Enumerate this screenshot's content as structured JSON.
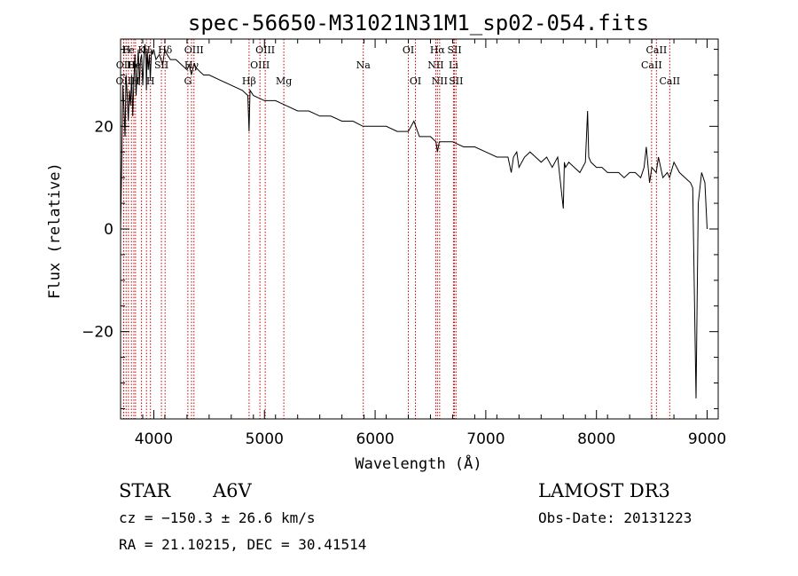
{
  "chart_data": {
    "type": "line",
    "title": "spec-56650-M31021N31M1_sp02-054.fits",
    "xlabel": "Wavelength (Å)",
    "ylabel": "Flux (relative)",
    "xlim": [
      3700,
      9100
    ],
    "ylim": [
      -37,
      37
    ],
    "x_ticks": [
      4000,
      5000,
      6000,
      7000,
      8000,
      9000
    ],
    "y_ticks": [
      -20,
      0,
      20
    ],
    "series": [
      {
        "name": "flux",
        "x": [
          3700,
          3710,
          3720,
          3730,
          3740,
          3750,
          3760,
          3770,
          3780,
          3790,
          3800,
          3810,
          3820,
          3830,
          3840,
          3850,
          3860,
          3870,
          3880,
          3890,
          3900,
          3910,
          3920,
          3930,
          3933,
          3940,
          3950,
          3960,
          3968,
          3980,
          3990,
          4000,
          4020,
          4050,
          4080,
          4100,
          4120,
          4150,
          4200,
          4250,
          4300,
          4320,
          4340,
          4360,
          4400,
          4450,
          4500,
          4600,
          4700,
          4800,
          4850,
          4861,
          4870,
          4900,
          5000,
          5100,
          5200,
          5300,
          5400,
          5500,
          5600,
          5700,
          5800,
          5890,
          5900,
          6000,
          6100,
          6200,
          6300,
          6350,
          6400,
          6500,
          6550,
          6563,
          6580,
          6600,
          6700,
          6800,
          6900,
          7000,
          7100,
          7200,
          7230,
          7250,
          7280,
          7300,
          7350,
          7400,
          7450,
          7500,
          7550,
          7600,
          7650,
          7700,
          7710,
          7720,
          7750,
          7800,
          7850,
          7900,
          7920,
          7930,
          7950,
          8000,
          8050,
          8100,
          8150,
          8200,
          8250,
          8300,
          8350,
          8400,
          8430,
          8450,
          8480,
          8500,
          8540,
          8560,
          8600,
          8640,
          8660,
          8700,
          8750,
          8800,
          8850,
          8870,
          8890,
          8900,
          8920,
          8950,
          8980,
          9000
        ],
        "y": [
          0,
          12,
          28,
          24,
          18,
          30,
          26,
          21,
          27,
          24,
          30,
          22,
          29,
          34,
          26,
          31,
          35,
          28,
          33,
          34,
          28,
          33,
          36,
          33,
          27,
          35,
          31,
          34,
          29,
          35,
          34,
          35,
          33,
          34,
          32,
          35,
          34,
          33,
          33,
          32,
          31,
          32,
          30,
          32,
          31,
          30,
          30,
          29,
          28,
          27,
          26,
          19,
          27,
          26,
          25,
          25,
          24,
          23,
          23,
          22,
          22,
          21,
          21,
          20,
          20,
          20,
          20,
          19,
          19,
          21,
          18,
          18,
          17,
          15,
          17,
          17,
          17,
          16,
          16,
          15,
          14,
          14,
          11,
          14,
          15,
          12,
          14,
          15,
          14,
          13,
          14,
          12,
          14,
          4,
          13,
          12,
          13,
          12,
          11,
          13,
          23,
          14,
          13,
          12,
          12,
          11,
          11,
          11,
          10,
          11,
          11,
          10,
          12,
          16,
          9,
          12,
          11,
          14,
          10,
          11,
          10,
          13,
          11,
          10,
          9,
          8,
          -20,
          -33,
          5,
          11,
          9,
          0
        ]
      }
    ],
    "spectral_lines": [
      {
        "label": "OII",
        "x": 3727,
        "row": "bottom"
      },
      {
        "label": "OII",
        "x": 3729,
        "row": "mid"
      },
      {
        "label": "H",
        "x": 3750,
        "row": "top"
      },
      {
        "label": "Fe",
        "x": 3771,
        "row": "top"
      },
      {
        "label": "H",
        "x": 3798,
        "row": "mid"
      },
      {
        "label": "He",
        "x": 3820,
        "row": "mid"
      },
      {
        "label": "H",
        "x": 3835,
        "row": "bottom"
      },
      {
        "label": "K",
        "x": 3889,
        "row": "top"
      },
      {
        "label": "H",
        "x": 3934,
        "row": "top"
      },
      {
        "label": "H",
        "x": 3970,
        "row": "bottom"
      },
      {
        "label": "SII",
        "x": 4069,
        "row": "mid"
      },
      {
        "label": "Hδ",
        "x": 4102,
        "row": "top"
      },
      {
        "label": "OIII",
        "x": 4363,
        "row": "top"
      },
      {
        "label": "G",
        "x": 4308,
        "row": "bottom"
      },
      {
        "label": "Hγ",
        "x": 4341,
        "row": "mid"
      },
      {
        "label": "Hβ",
        "x": 4861,
        "row": "bottom"
      },
      {
        "label": "OIII",
        "x": 4959,
        "row": "mid"
      },
      {
        "label": "OIII",
        "x": 5007,
        "row": "top"
      },
      {
        "label": "Mg",
        "x": 5175,
        "row": "bottom"
      },
      {
        "label": "Na",
        "x": 5893,
        "row": "mid"
      },
      {
        "label": "OI",
        "x": 6300,
        "row": "top"
      },
      {
        "label": "OI",
        "x": 6364,
        "row": "bottom"
      },
      {
        "label": "Hα",
        "x": 6563,
        "row": "top"
      },
      {
        "label": "NII",
        "x": 6548,
        "row": "mid"
      },
      {
        "label": "NII",
        "x": 6583,
        "row": "bottom"
      },
      {
        "label": "SII",
        "x": 6717,
        "row": "top"
      },
      {
        "label": "Li",
        "x": 6708,
        "row": "mid"
      },
      {
        "label": "SII",
        "x": 6731,
        "row": "bottom"
      },
      {
        "label": "CaII",
        "x": 8498,
        "row": "mid"
      },
      {
        "label": "CaII",
        "x": 8542,
        "row": "top"
      },
      {
        "label": "CaII",
        "x": 8662,
        "row": "bottom"
      }
    ],
    "line_color": "#cc0000"
  },
  "info": {
    "object_class": "STAR",
    "subclass": "A6V",
    "survey": "LAMOST DR3",
    "cz": "cz = −150.3 ± 26.6 km/s",
    "obs_date": "Obs-Date: 20131223",
    "coords": "RA =  21.10215, DEC =  30.41514"
  }
}
